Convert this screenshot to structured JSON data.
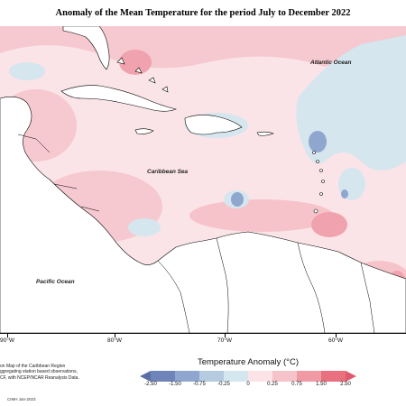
{
  "title": "Anomaly of the Mean Temperature for the period July to December 2022",
  "map_labels": {
    "atlantic": "Atlantic Ocean",
    "caribbean": "Caribbean Sea",
    "pacific": "Pacific Ocean"
  },
  "longitude_ticks": [
    {
      "label": "90°W"
    },
    {
      "label": "80°W"
    },
    {
      "label": "70°W"
    },
    {
      "label": "60°W"
    }
  ],
  "source_note": [
    "on Map of the Caribbean Region",
    "ggregating station based observations,",
    "CF, with NCEP/NCAR Reanalysis Data."
  ],
  "credit": "CIMH Jan-2023",
  "legend": {
    "title": "Temperature Anomaly (°C)",
    "labels": [
      "-2.50",
      "-1.50",
      "-0.75",
      "-0.25",
      "0",
      "0.25",
      "0.75",
      "1.50",
      "2.50"
    ],
    "colors": [
      "#6f84b8",
      "#8fa6cf",
      "#b6cbe0",
      "#d4e6ee",
      "#fbe3e6",
      "#f6c3cb",
      "#f09aa6",
      "#e8707f"
    ]
  }
}
